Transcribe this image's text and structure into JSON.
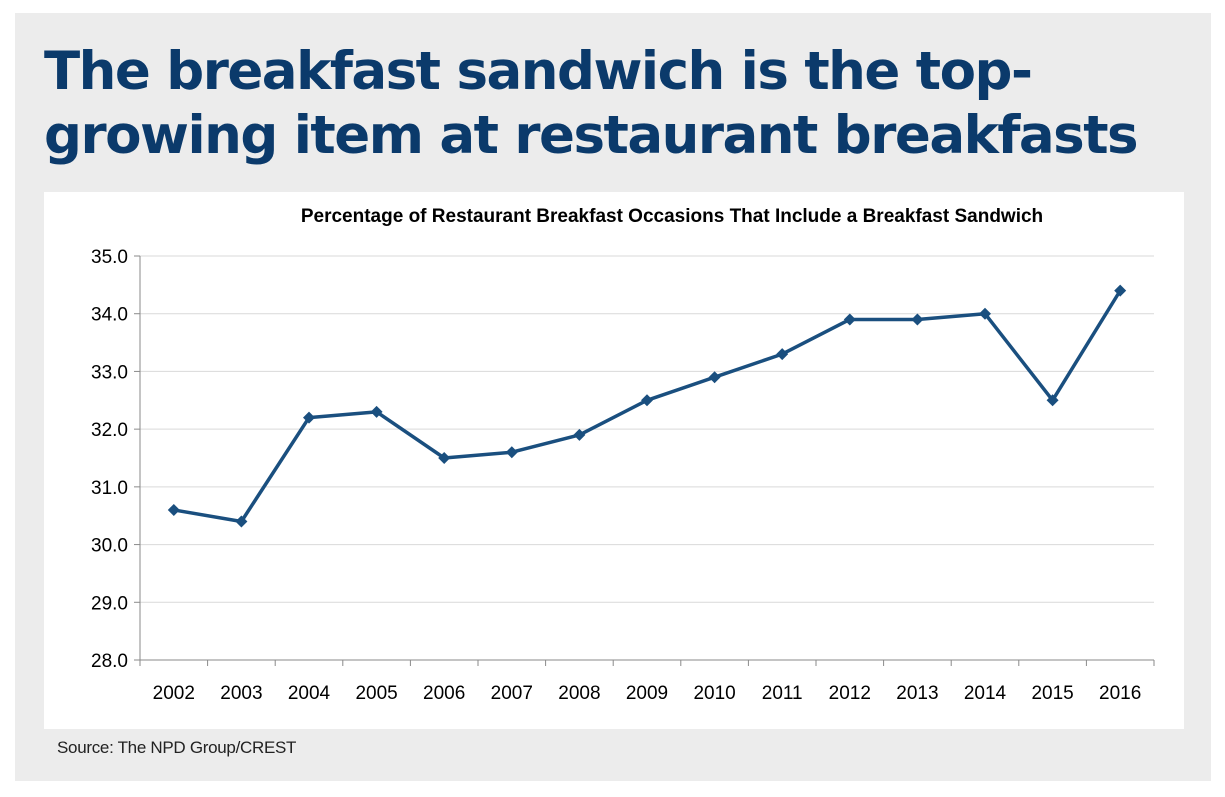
{
  "headline": "The breakfast sandwich is the top-growing item at restaurant breakfasts",
  "source": "Source: The NPD Group/CREST",
  "colors": {
    "headline": "#0b3a6b",
    "series": "#1a4f7f",
    "frame_background": "#ececec",
    "gridline": "#d9d9d9"
  },
  "chart_data": {
    "type": "line",
    "title": "Percentage of Restaurant Breakfast Occasions That Include a Breakfast Sandwich",
    "xlabel": "",
    "ylabel": "",
    "x": [
      "2002",
      "2003",
      "2004",
      "2005",
      "2006",
      "2007",
      "2008",
      "2009",
      "2010",
      "2011",
      "2012",
      "2013",
      "2014",
      "2015",
      "2016"
    ],
    "series": [
      {
        "values": [
          30.6,
          30.4,
          32.2,
          32.3,
          31.5,
          31.6,
          31.9,
          32.5,
          32.9,
          33.3,
          33.9,
          33.9,
          34.0,
          32.5,
          34.4
        ],
        "marker": "diamond"
      }
    ],
    "ylim": [
      28.0,
      35.0
    ],
    "y_ticks": [
      "28.0",
      "29.0",
      "30.0",
      "31.0",
      "32.0",
      "33.0",
      "34.0",
      "35.0"
    ],
    "grid": true,
    "legend": "none"
  }
}
